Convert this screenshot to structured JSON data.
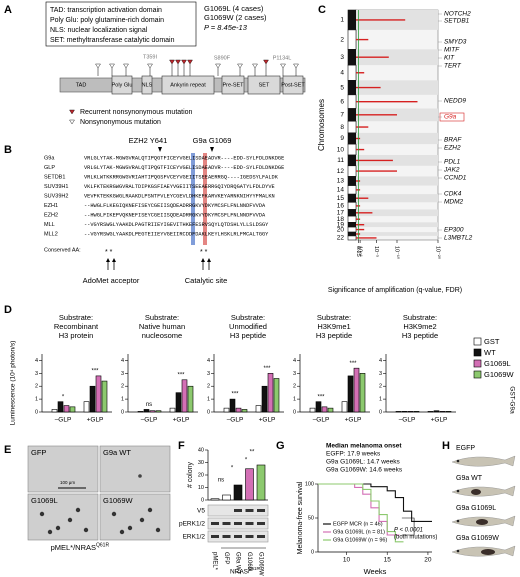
{
  "panel_a": {
    "label": "A",
    "legend": [
      "TAD: transcription activation domain",
      "Poly Glu: poly glutamine-rich domain",
      "NLS: nuclear localization signal",
      "SET: methyltransferase catalytic domain"
    ],
    "cases": [
      "G1069L (4 cases)",
      "G1069W (2 cases)"
    ],
    "p_value": "P = 8.45e-13",
    "domains": [
      "TAD",
      "Poly Glu",
      "NLS",
      "Ankyrin repeat",
      "Pre-SET",
      "SET",
      "Post-SET"
    ],
    "mutations": [
      "T359I",
      "S890F",
      "P1134L"
    ],
    "key": [
      "Recurrent nonsynonymous mutation",
      "Nonsynonymous mutation"
    ]
  },
  "panel_b": {
    "label": "B",
    "sites": [
      "EZH2 Y641",
      "G9a G1069"
    ],
    "rows": [
      {
        "name": "G9a",
        "seq": "VRLGLYTAK-MGWGVRALQTIPQGTFICEYVGELISDAEADVR----EDD-SYLFDLDNKDGE"
      },
      {
        "name": "GLP",
        "seq": "VRLGLYTAK-MGWGVRALQTIPQGTFICEYVGELISDAEADVR----EDD-SYLFDLDNKDGE"
      },
      {
        "name": "SETDB1",
        "seq": "VRLKLWTKKRRGWGVRIAHTIPQGSFVCEYVGEIITSEEAERRGQ----IGEDSYLFALDK"
      },
      {
        "name": "SUV39H1",
        "seq": "VKLFKTEKRGWGVRALTDIPKGSFIAEYVGEIITSEEAERRGQIYDRQGATYLFDLDYVE"
      },
      {
        "name": "SUV39H2",
        "seq": "VEVFKTEKKGWGLRAAKDLPSNTFVLEYCGEVLDHKEFKARVKEYARNKNIHYYFMALKN"
      },
      {
        "name": "EZH1",
        "seq": "--HWGLFLKEGIQKNEFISEYCGEIISQDEADRRGKVYDKYMCSFLFNLNNDFVVDA"
      },
      {
        "name": "EZH2",
        "seq": "--HWGLFIKEPVQKNEFISEYCGEIISQDEADRRGKVYDKYMCSFLFNLNNDFVVDA"
      },
      {
        "name": "MLL",
        "seq": "--VGYRSWGLYAAKDLPAGTRIIEYIGEVITHKEFESRVSQYLQTDSHLYLLSLDSGY"
      },
      {
        "name": "MLL2",
        "seq": "--VGYRSWGLYAAKDLPEGTEIIEYVGEIIRCDDFDAKLKEYLHSKLRLFMCALTGGY"
      }
    ],
    "conserved_label": "Conserved AA:",
    "stars": [
      "* *",
      "* *"
    ],
    "annotations": [
      "AdoMet acceptor",
      "Catalytic site"
    ]
  },
  "panel_c": {
    "label": "C",
    "y_label": "Chromosomes",
    "x_label": "Significance of amplification (q-value, FDR)",
    "chromosomes": [
      "1",
      "2",
      "3",
      "4",
      "5",
      "6",
      "7",
      "8",
      "9",
      "10",
      "11",
      "12",
      "13",
      "14",
      "15",
      "16",
      "17",
      "18",
      "19",
      "20",
      null,
      "22"
    ],
    "amplification": [
      12,
      3,
      8,
      2,
      6,
      15,
      10,
      3,
      1,
      2,
      9,
      10,
      1,
      1,
      3,
      1,
      4,
      1,
      2,
      2,
      1,
      5
    ],
    "xlim": [
      0,
      20
    ],
    "xticks": [
      {
        "value": 0.6,
        "label": "0.25"
      },
      {
        "value": 1,
        "label": "10⁻¹"
      },
      {
        "value": 5,
        "label": "10⁻⁵"
      },
      {
        "value": 10,
        "label": "10⁻¹⁰"
      },
      {
        "value": 20,
        "label": "10⁻²⁰"
      }
    ],
    "genes": [
      "NOTCH2",
      "SETDB1",
      "SMYD3",
      "MITF",
      "KIT",
      "TERT",
      "NEDD9",
      "G9a",
      "BRAF",
      "EZH2",
      "PDL1",
      "JAK2",
      "CCND1",
      "CDK4",
      "MDM2",
      "EP300",
      "L3MBTL2"
    ]
  },
  "panel_d": {
    "label": "D",
    "y_label": "Luminescence (10⁴ photon/s)",
    "ylim": [
      0,
      4.5
    ],
    "yticks": [
      0,
      1,
      2,
      3,
      4
    ],
    "groups": [
      "–GLP",
      "+GLP"
    ],
    "side_label": "GST-G9a",
    "legend": [
      {
        "name": "GST",
        "color": "#ffffff"
      },
      {
        "name": "WT",
        "color": "#111111"
      },
      {
        "name": "G1069L",
        "color": "#d36fb5"
      },
      {
        "name": "G1069W",
        "color": "#8cc96e"
      }
    ],
    "subplots": [
      {
        "title": [
          "Substrate:",
          "Recombinant",
          "H3 protein"
        ],
        "values": [
          [
            0.2,
            0.8,
            0.5,
            0.4
          ],
          [
            0.8,
            2.0,
            2.8,
            2.4
          ]
        ],
        "annotations": [
          "*",
          "***"
        ]
      },
      {
        "title": [
          "Substrate:",
          "Native human",
          "nucleosome"
        ],
        "values": [
          [
            0.05,
            0.2,
            0.1,
            0.1
          ],
          [
            0.3,
            1.5,
            2.5,
            2.0
          ]
        ],
        "annotations": [
          "ns",
          "***"
        ]
      },
      {
        "title": [
          "Substrate:",
          "Unmodified",
          "H3 peptide"
        ],
        "values": [
          [
            0.3,
            1.0,
            0.3,
            0.2
          ],
          [
            0.5,
            2.0,
            3.0,
            2.6
          ]
        ],
        "annotations": [
          "***",
          "***"
        ]
      },
      {
        "title": [
          "Substrate:",
          "H3K9me1",
          "H3 peptide"
        ],
        "values": [
          [
            0.3,
            0.8,
            0.4,
            0.3
          ],
          [
            0.8,
            2.8,
            3.4,
            3.0
          ]
        ],
        "annotations": [
          "***",
          "***"
        ]
      },
      {
        "title": [
          "Substrate:",
          "H3K9me2",
          "H3 peptide"
        ],
        "values": [
          [
            0.05,
            0.05,
            0.05,
            0.05
          ],
          [
            0.05,
            0.1,
            0.05,
            0.05
          ]
        ]
      }
    ]
  },
  "panel_e": {
    "label": "E",
    "images": [
      "GFP",
      "G9a WT",
      "G1069L",
      "G1069W"
    ],
    "scale": "100 μm",
    "caption": "pMEL*/NRAS",
    "caption_sup": "Q61R"
  },
  "panel_f": {
    "label": "F",
    "y_label": "# colony",
    "ylim": [
      0,
      40
    ],
    "yticks": [
      0,
      10,
      20,
      30,
      40
    ],
    "lanes": [
      "pMEL*",
      "GFP",
      "G9a WT",
      "G1069L",
      "G1069W"
    ],
    "values": [
      1,
      4,
      12,
      25,
      28
    ],
    "colors": [
      "#ffffff",
      "#ffffff",
      "#111111",
      "#d36fb5",
      "#8cc96e"
    ],
    "annotations": [
      "ns",
      "*",
      "**",
      "*"
    ],
    "blots": [
      "V5",
      "pERK1/2",
      "ERK1/2"
    ],
    "group": "NRAS",
    "group_sup": "Q61R"
  },
  "panel_g": {
    "label": "G",
    "onset": [
      "Median melanoma onset",
      "EGFP: 17.9 weeks",
      "G9a G1069L: 14.7 weeks",
      "G9a G1069W: 14.6 weeks"
    ],
    "y_label": "Melanoma-free survival",
    "x_label": "Weeks",
    "xlim": [
      6.5,
      20.5
    ],
    "xticks": [
      10,
      15,
      20
    ],
    "ylim": [
      0,
      100
    ],
    "yticks": [
      0,
      50,
      100
    ],
    "series": [
      {
        "name": "EGFP MCR (n = 46)",
        "color": "#111111",
        "x": [
          6.5,
          13,
          13,
          15,
          15,
          16,
          16,
          17,
          17,
          18,
          18,
          20.5
        ],
        "values": [
          100,
          100,
          96,
          96,
          90,
          90,
          80,
          80,
          60,
          60,
          45,
          45
        ]
      },
      {
        "name": "G9a G1069L (n = 81)",
        "color": "#d36fb5",
        "x": [
          6.5,
          11,
          11,
          12,
          12,
          13,
          13,
          14,
          14,
          15,
          15,
          16.5
        ],
        "values": [
          100,
          100,
          95,
          95,
          85,
          85,
          65,
          65,
          45,
          45,
          25,
          25
        ]
      },
      {
        "name": "G9a G1069W (n = 96)",
        "color": "#8cc96e",
        "x": [
          6.5,
          12,
          12,
          13,
          13,
          14,
          14,
          15,
          15,
          16,
          16,
          17
        ],
        "values": [
          100,
          100,
          92,
          92,
          75,
          75,
          55,
          55,
          30,
          30,
          15,
          15
        ]
      }
    ],
    "p_text": [
      "P < 0.0001",
      "(both mutations)"
    ]
  },
  "panel_h": {
    "label": "H",
    "fish": [
      "EGFP",
      "G9a WT",
      "G9a G1069L",
      "G9a G1069W"
    ]
  }
}
